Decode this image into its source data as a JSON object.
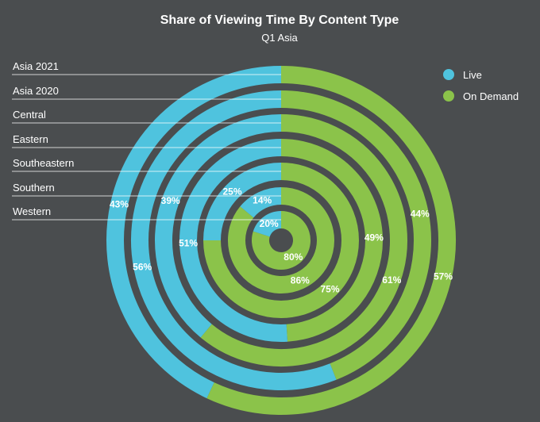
{
  "chart_data": {
    "type": "radial-bar",
    "title": "Share of Viewing Time By Content Type",
    "subtitle": "Q1 Asia",
    "categories": [
      "Asia 2021",
      "Asia 2020",
      "Central",
      "Eastern",
      "Southeastern",
      "Southern",
      "Western"
    ],
    "series": [
      {
        "name": "Live",
        "color": "#4fc3de",
        "values": [
          43,
          56,
          39,
          51,
          25,
          14,
          20
        ]
      },
      {
        "name": "On Demand",
        "color": "#8bc34a",
        "values": [
          57,
          44,
          61,
          49,
          75,
          86,
          80
        ]
      }
    ],
    "unit": "%",
    "legend_position": "top-right",
    "grid": false
  },
  "colors": {
    "background": "#4a4d4f",
    "label_line": "#ffffff"
  }
}
